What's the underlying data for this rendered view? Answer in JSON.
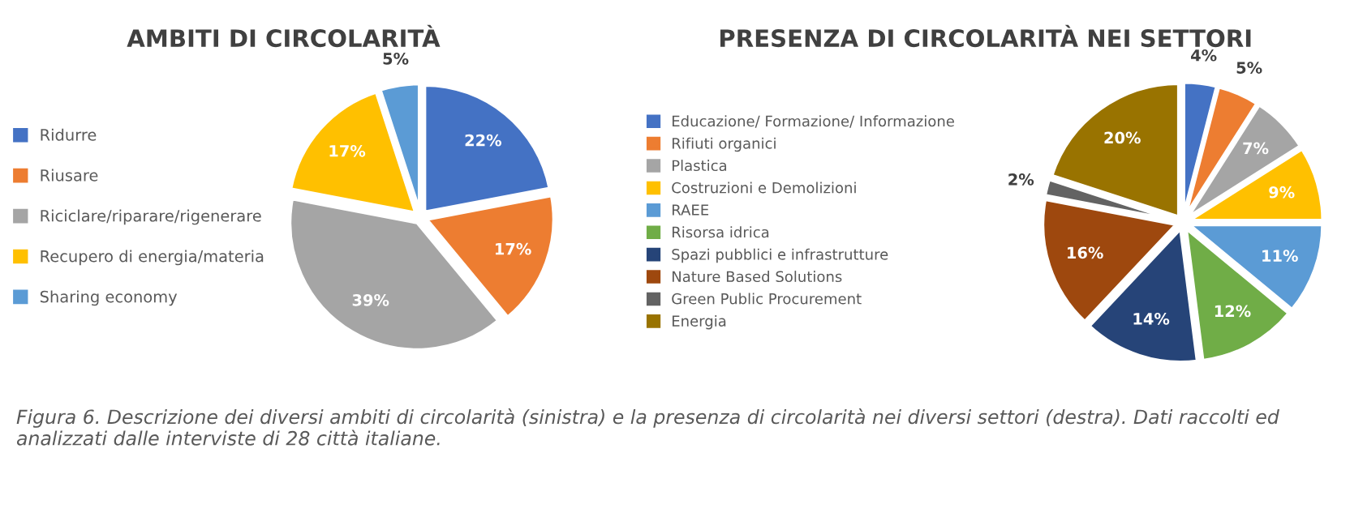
{
  "chart_data": [
    {
      "type": "pie",
      "title": "AMBITI DI CIRCOLARITÀ",
      "legend": "left",
      "categories": [
        "Ridurre",
        "Riusare",
        "Riciclare/riparare/rigenerare",
        "Recupero di energia/materia",
        "Sharing economy"
      ],
      "values": [
        22,
        17,
        39,
        17,
        5
      ],
      "value_labels": [
        "22%",
        "17%",
        "39%",
        "17%",
        "5%"
      ],
      "colors": [
        "#4472c4",
        "#ed7d31",
        "#a5a5a5",
        "#ffc000",
        "#5b9bd5"
      ],
      "annotations": [
        "Figura 6. Descrizione dei diversi ambiti di circolarità (sinistra) e la presenza di circolarità nei diversi settori (destra). Dati raccolti ed analizzati dalle interviste di 28 città italiane."
      ]
    },
    {
      "type": "pie",
      "title": "PRESENZA DI CIRCOLARITÀ NEI SETTORI",
      "legend": "left",
      "categories": [
        "Educazione/ Formazione/ Informazione",
        "Rifiuti organici",
        "Plastica",
        "Costruzioni e Demolizioni",
        "RAEE",
        "Risorsa idrica",
        "Spazi pubblici e infrastrutture",
        "Nature Based Solutions",
        "Green Public Procurement",
        "Energia"
      ],
      "values": [
        4,
        5,
        7,
        9,
        11,
        12,
        14,
        16,
        2,
        20
      ],
      "value_labels": [
        "4%",
        "5%",
        "7%",
        "9%",
        "11%",
        "12%",
        "14%",
        "16%",
        "2%",
        "20%"
      ],
      "colors": [
        "#4472c4",
        "#ed7d31",
        "#a5a5a5",
        "#ffc000",
        "#5b9bd5",
        "#70ad47",
        "#264478",
        "#9e480e",
        "#636363",
        "#997300"
      ]
    }
  ]
}
